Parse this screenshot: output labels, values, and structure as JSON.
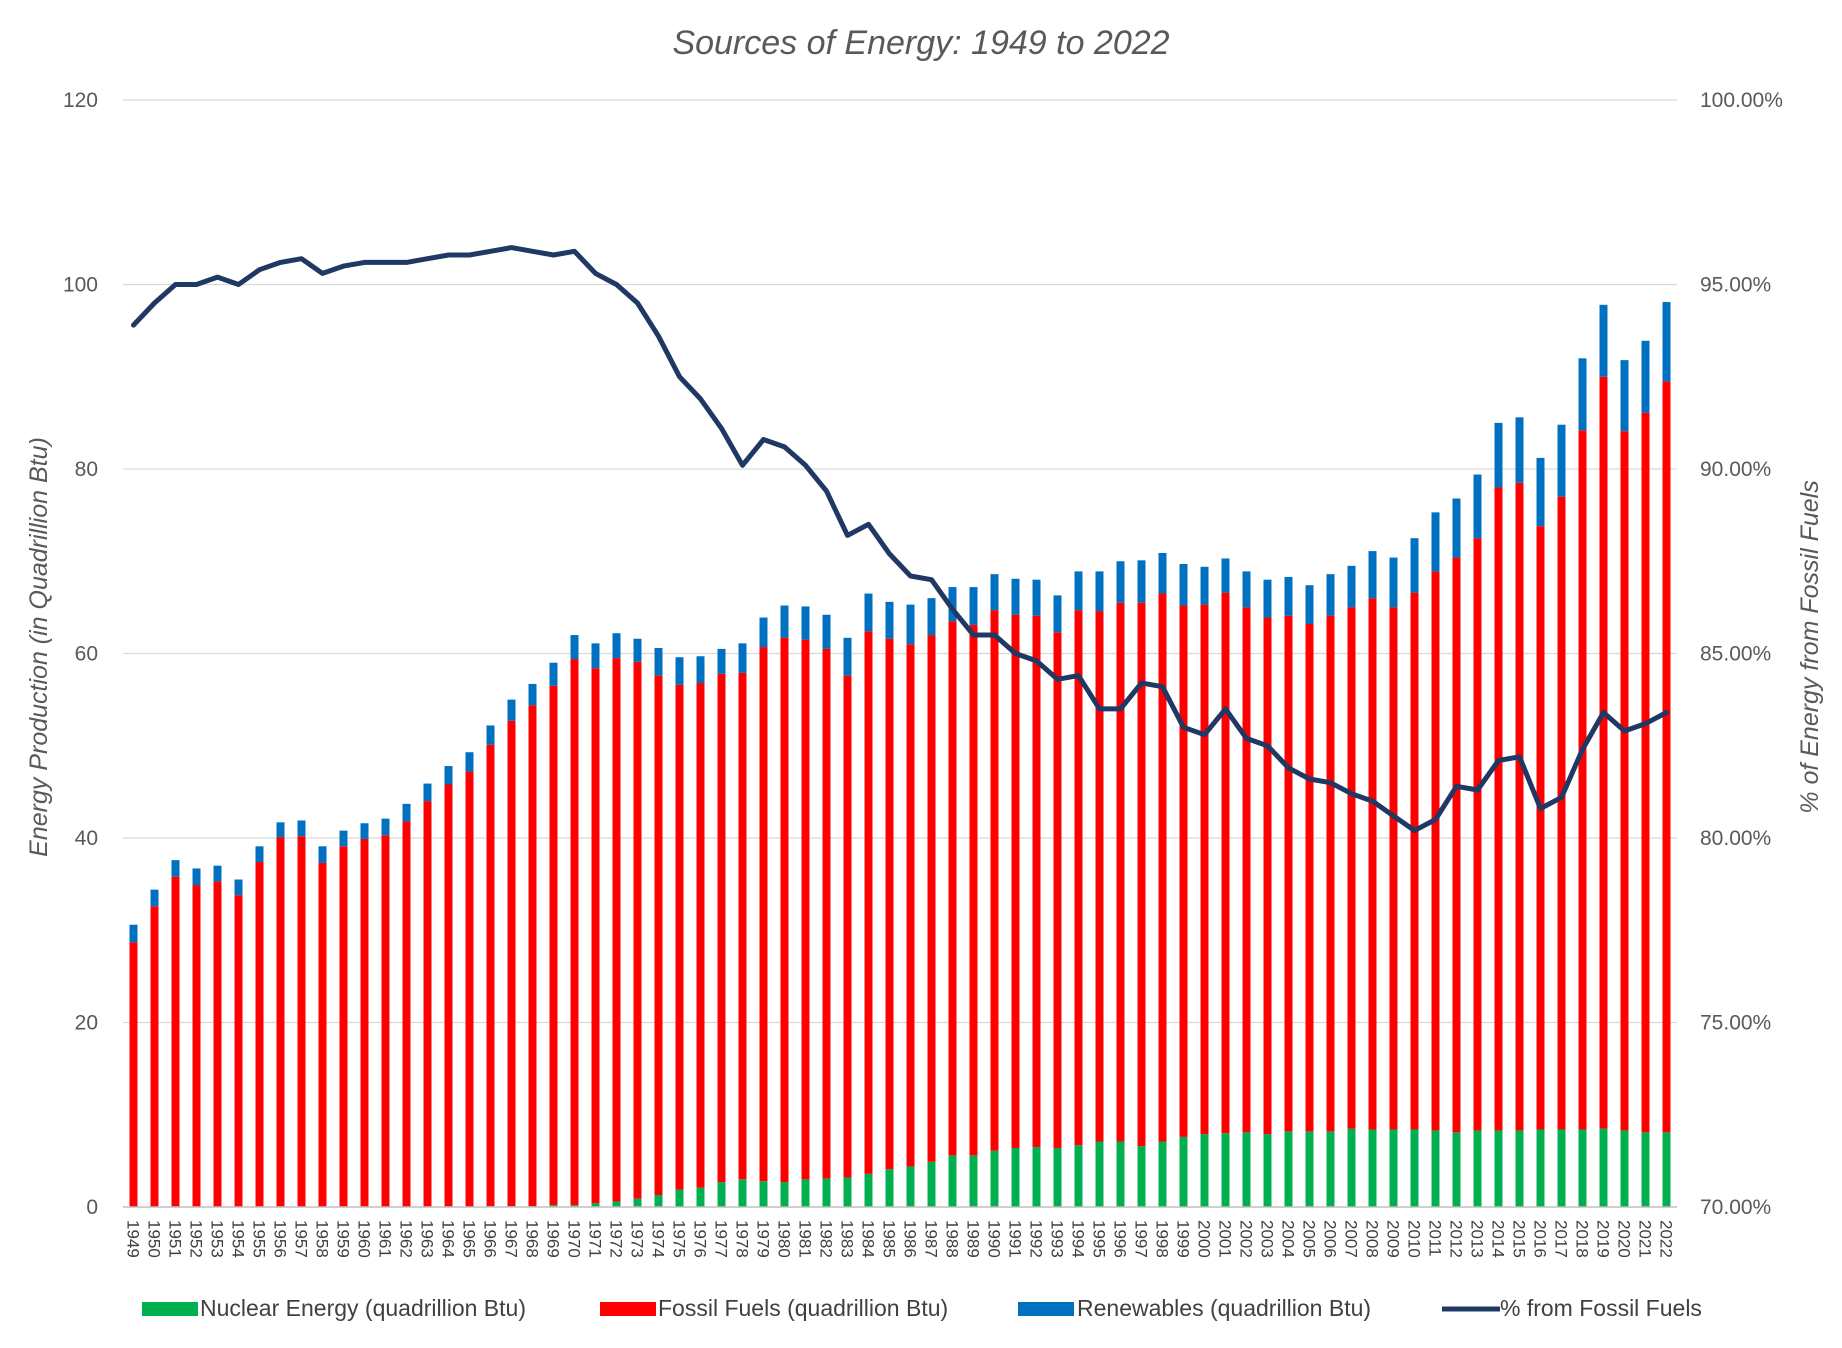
{
  "chart_data": {
    "type": "bar",
    "title": "Sources of Energy: 1949 to 2022",
    "ylabel": "Energy Production (in Quadrillion Btu)",
    "y2label": "% of Energy from Fossil Fuels",
    "ylim": [
      0,
      120
    ],
    "y2lim": [
      0.7,
      1.0
    ],
    "yticks": [
      "0",
      "20",
      "40",
      "60",
      "80",
      "100",
      "120"
    ],
    "y2ticks": [
      "70.00%",
      "75.00%",
      "80.00%",
      "85.00%",
      "90.00%",
      "95.00%",
      "100.00%"
    ],
    "grid": true,
    "legend_position": "bottom",
    "categories": [
      "1949",
      "1950",
      "1951",
      "1952",
      "1953",
      "1954",
      "1955",
      "1956",
      "1957",
      "1958",
      "1959",
      "1960",
      "1961",
      "1962",
      "1963",
      "1964",
      "1965",
      "1966",
      "1967",
      "1968",
      "1969",
      "1970",
      "1971",
      "1972",
      "1973",
      "1974",
      "1975",
      "1976",
      "1977",
      "1978",
      "1979",
      "1980",
      "1981",
      "1982",
      "1983",
      "1984",
      "1985",
      "1986",
      "1987",
      "1988",
      "1989",
      "1990",
      "1991",
      "1992",
      "1993",
      "1994",
      "1995",
      "1996",
      "1997",
      "1998",
      "1999",
      "2000",
      "2001",
      "2002",
      "2003",
      "2004",
      "2005",
      "2006",
      "2007",
      "2008",
      "2009",
      "2010",
      "2011",
      "2012",
      "2013",
      "2014",
      "2015",
      "2016",
      "2017",
      "2018",
      "2019",
      "2020",
      "2021",
      "2022"
    ],
    "series": [
      {
        "name": "Nuclear Energy (quadrillion Btu)",
        "kind": "bar",
        "color": "#00B050",
        "values": [
          0,
          0,
          0,
          0,
          0,
          0,
          0,
          0,
          0,
          0,
          0,
          0,
          0,
          0,
          0,
          0,
          0,
          0.1,
          0.1,
          0.1,
          0.2,
          0.2,
          0.4,
          0.6,
          0.9,
          1.3,
          1.9,
          2.1,
          2.7,
          3.0,
          2.8,
          2.7,
          3.0,
          3.1,
          3.2,
          3.6,
          4.1,
          4.4,
          4.9,
          5.6,
          5.6,
          6.1,
          6.4,
          6.5,
          6.4,
          6.7,
          7.1,
          7.1,
          6.6,
          7.1,
          7.6,
          7.9,
          8.0,
          8.1,
          7.9,
          8.2,
          8.2,
          8.2,
          8.5,
          8.4,
          8.4,
          8.4,
          8.3,
          8.1,
          8.3,
          8.3,
          8.3,
          8.4,
          8.4,
          8.4,
          8.5,
          8.3,
          8.1,
          8.1
        ]
      },
      {
        "name": "Fossil Fuels (quadrillion Btu)",
        "kind": "bar",
        "color": "#FF0000",
        "values": [
          28.7,
          32.6,
          35.8,
          34.9,
          35.3,
          33.8,
          37.4,
          40.1,
          40.2,
          37.3,
          39.1,
          39.9,
          40.3,
          41.8,
          44.0,
          45.8,
          47.2,
          50.0,
          52.6,
          54.3,
          56.3,
          59.2,
          58.0,
          58.9,
          58.2,
          56.3,
          54.7,
          54.7,
          55.1,
          54.9,
          57.9,
          59.0,
          58.5,
          57.4,
          54.4,
          58.8,
          57.5,
          56.6,
          57.1,
          57.9,
          57.5,
          58.6,
          57.8,
          57.6,
          55.9,
          58.0,
          57.5,
          58.4,
          58.9,
          59.4,
          57.6,
          57.4,
          58.6,
          56.9,
          56.0,
          55.9,
          55.0,
          55.9,
          56.5,
          57.6,
          56.6,
          58.2,
          60.6,
          62.3,
          64.2,
          69.7,
          70.2,
          65.4,
          68.6,
          75.8,
          81.5,
          75.8,
          78.0,
          81.4
        ]
      },
      {
        "name": "Renewables (quadrillion Btu)",
        "kind": "bar",
        "color": "#0070C0",
        "values": [
          1.9,
          1.8,
          1.8,
          1.8,
          1.7,
          1.7,
          1.7,
          1.6,
          1.7,
          1.8,
          1.7,
          1.7,
          1.8,
          1.9,
          1.9,
          2.0,
          2.1,
          2.1,
          2.3,
          2.3,
          2.5,
          2.6,
          2.7,
          2.7,
          2.5,
          3.0,
          3.0,
          2.9,
          2.7,
          3.2,
          3.2,
          3.5,
          3.6,
          3.7,
          4.1,
          4.1,
          4.0,
          4.3,
          4.0,
          3.7,
          4.1,
          3.9,
          3.9,
          3.9,
          4.0,
          4.2,
          4.3,
          4.5,
          4.6,
          4.4,
          4.5,
          4.1,
          3.7,
          3.9,
          4.1,
          4.2,
          4.2,
          4.5,
          4.5,
          5.1,
          5.4,
          5.9,
          6.4,
          6.4,
          6.9,
          7.0,
          7.1,
          7.4,
          7.8,
          7.8,
          7.8,
          7.7,
          7.8,
          8.6
        ]
      },
      {
        "name": "% from Fossil Fuels",
        "kind": "line",
        "axis": "right",
        "color": "#1F3864",
        "values": [
          0.939,
          0.945,
          0.95,
          0.95,
          0.952,
          0.95,
          0.954,
          0.956,
          0.957,
          0.953,
          0.955,
          0.956,
          0.956,
          0.956,
          0.957,
          0.958,
          0.958,
          0.959,
          0.96,
          0.959,
          0.958,
          0.959,
          0.953,
          0.95,
          0.945,
          0.936,
          0.925,
          0.919,
          0.911,
          0.901,
          0.908,
          0.906,
          0.901,
          0.894,
          0.882,
          0.885,
          0.877,
          0.871,
          0.87,
          0.862,
          0.855,
          0.855,
          0.85,
          0.848,
          0.843,
          0.844,
          0.835,
          0.835,
          0.842,
          0.841,
          0.83,
          0.828,
          0.835,
          0.827,
          0.825,
          0.819,
          0.816,
          0.815,
          0.812,
          0.81,
          0.806,
          0.802,
          0.805,
          0.814,
          0.813,
          0.821,
          0.822,
          0.808,
          0.811,
          0.824,
          0.834,
          0.829,
          0.831,
          0.834
        ]
      }
    ]
  }
}
